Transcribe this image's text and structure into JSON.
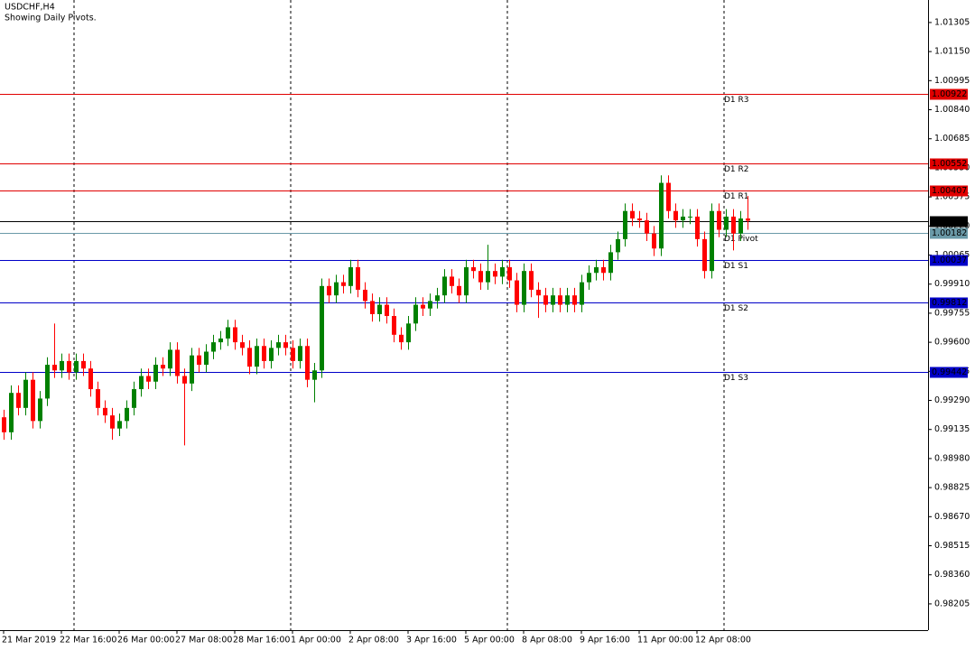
{
  "chart_data": {
    "type": "candlestick",
    "title": "USDCHF,H4",
    "subtitle": "Showing Daily Pivots.",
    "categories": [
      "21 Mar 2019",
      null,
      null,
      null,
      null,
      null,
      null,
      null,
      "22 Mar 16:00",
      null,
      null,
      null,
      null,
      null,
      null,
      null,
      "26 Mar 00:00",
      null,
      null,
      null,
      null,
      null,
      null,
      null,
      "27 Mar 08:00",
      null,
      null,
      null,
      null,
      null,
      null,
      null,
      "28 Mar 16:00",
      null,
      null,
      null,
      null,
      null,
      null,
      null,
      "1 Apr 00:00",
      null,
      null,
      null,
      null,
      null,
      null,
      null,
      "2 Apr 08:00",
      null,
      null,
      null,
      null,
      null,
      null,
      null,
      "3 Apr 16:00",
      null,
      null,
      null,
      null,
      null,
      null,
      null,
      "5 Apr 00:00",
      null,
      null,
      null,
      null,
      null,
      null,
      null,
      "8 Apr 08:00",
      null,
      null,
      null,
      null,
      null,
      null,
      null,
      "9 Apr 16:00",
      null,
      null,
      null,
      null,
      null,
      null,
      null,
      "11 Apr 00:00",
      null,
      null,
      null,
      null,
      null,
      null,
      null,
      "12 Apr 08:00",
      null,
      null,
      null,
      null,
      null,
      null,
      null
    ],
    "open": [
      0.992,
      0.9912,
      0.9933,
      0.9925,
      0.994,
      0.9918,
      0.993,
      0.9948,
      0.9945,
      0.995,
      0.9944,
      0.995,
      0.9946,
      0.9935,
      0.9925,
      0.9921,
      0.9914,
      0.9918,
      0.9925,
      0.9935,
      0.9942,
      0.9939,
      0.9948,
      0.9946,
      0.9956,
      0.9942,
      0.9938,
      0.9953,
      0.9948,
      0.9955,
      0.996,
      0.9962,
      0.9968,
      0.996,
      0.9957,
      0.9947,
      0.9958,
      0.995,
      0.9957,
      0.996,
      0.9957,
      0.995,
      0.9958,
      0.994,
      0.9945,
      0.999,
      0.9985,
      0.9992,
      0.999,
      1.0,
      0.9988,
      0.9982,
      0.9975,
      0.998,
      0.9974,
      0.9964,
      0.996,
      0.997,
      0.998,
      0.9978,
      0.9982,
      0.9985,
      0.9995,
      0.999,
      0.9985,
      1.0,
      0.9998,
      0.9992,
      0.9998,
      0.9995,
      1.0,
      0.9993,
      0.998,
      0.9998,
      0.9988,
      0.9985,
      0.998,
      0.9985,
      0.998,
      0.9985,
      0.998,
      0.9992,
      0.9997,
      1.0,
      0.9997,
      1.0008,
      1.0015,
      1.003,
      1.0026,
      1.0025,
      1.0018,
      1.001,
      1.0045,
      1.003,
      1.0025,
      1.0027,
      1.0027,
      1.0015,
      0.9998,
      1.003,
      1.002,
      1.0027,
      1.0018,
      1.0026
    ],
    "high": [
      0.9924,
      0.9937,
      0.9937,
      0.9944,
      0.9944,
      0.9934,
      0.9952,
      0.997,
      0.9954,
      0.9954,
      0.9954,
      0.9954,
      0.995,
      0.9939,
      0.9929,
      0.9925,
      0.9922,
      0.9929,
      0.9939,
      0.9946,
      0.9946,
      0.9952,
      0.9952,
      0.996,
      0.996,
      0.9946,
      0.9957,
      0.9957,
      0.9959,
      0.9964,
      0.9966,
      0.9972,
      0.9972,
      0.9964,
      0.9961,
      0.9962,
      0.9962,
      0.9961,
      0.9964,
      0.9964,
      0.9961,
      0.9962,
      0.9962,
      0.9949,
      0.9994,
      0.9994,
      0.9996,
      0.9996,
      1.0004,
      1.0004,
      0.9992,
      0.9986,
      0.9984,
      0.9984,
      0.9978,
      0.9968,
      0.9974,
      0.9984,
      0.9984,
      0.9986,
      0.9989,
      0.9999,
      0.9999,
      0.9994,
      1.0004,
      1.0004,
      1.0002,
      1.0012,
      1.0002,
      1.0004,
      1.0004,
      0.9997,
      1.0002,
      1.0002,
      0.9992,
      0.9989,
      0.9989,
      0.9989,
      0.9989,
      0.9989,
      0.9996,
      1.0001,
      1.0004,
      1.0004,
      1.0012,
      1.0019,
      1.0034,
      1.0034,
      1.003,
      1.0029,
      1.0022,
      1.0049,
      1.0049,
      1.0034,
      1.0031,
      1.0031,
      1.0031,
      1.0019,
      1.0034,
      1.0034,
      1.0031,
      1.0031,
      1.003,
      1.0038
    ],
    "low": [
      0.9908,
      0.9908,
      0.9921,
      0.9921,
      0.9914,
      0.9914,
      0.9926,
      0.9941,
      0.9941,
      0.994,
      0.994,
      0.9942,
      0.9931,
      0.9921,
      0.9917,
      0.9908,
      0.991,
      0.9914,
      0.9921,
      0.9931,
      0.9935,
      0.9935,
      0.9942,
      0.9942,
      0.9938,
      0.9905,
      0.9934,
      0.9944,
      0.9944,
      0.9951,
      0.9956,
      0.9958,
      0.9956,
      0.9953,
      0.9943,
      0.9943,
      0.9946,
      0.9946,
      0.9953,
      0.9953,
      0.9946,
      0.9946,
      0.9936,
      0.9928,
      0.9941,
      0.9981,
      0.9981,
      0.9986,
      0.9986,
      0.9984,
      0.9978,
      0.9971,
      0.9971,
      0.997,
      0.996,
      0.9956,
      0.9956,
      0.9966,
      0.9974,
      0.9974,
      0.9978,
      0.9981,
      0.9986,
      0.9981,
      0.9981,
      0.9994,
      0.9988,
      0.9988,
      0.9991,
      0.9991,
      0.9989,
      0.9976,
      0.9976,
      0.9984,
      0.9973,
      0.9976,
      0.9976,
      0.9976,
      0.9976,
      0.9976,
      0.9976,
      0.9988,
      0.9993,
      0.9993,
      0.9993,
      1.0004,
      1.0011,
      1.0022,
      1.0021,
      1.0014,
      1.0006,
      1.0006,
      1.0026,
      1.0021,
      1.0021,
      1.0023,
      1.0011,
      0.9994,
      0.9994,
      1.0016,
      1.0016,
      1.0009,
      1.0014,
      1.002
    ],
    "close": [
      0.9912,
      0.9933,
      0.9925,
      0.994,
      0.9918,
      0.993,
      0.9948,
      0.9945,
      0.995,
      0.9944,
      0.995,
      0.9946,
      0.9935,
      0.9925,
      0.9921,
      0.9914,
      0.9918,
      0.9925,
      0.9935,
      0.9942,
      0.9939,
      0.9948,
      0.9946,
      0.9956,
      0.9942,
      0.9938,
      0.9953,
      0.9948,
      0.9955,
      0.996,
      0.9962,
      0.9968,
      0.996,
      0.9957,
      0.9947,
      0.9958,
      0.995,
      0.9957,
      0.996,
      0.9957,
      0.995,
      0.9958,
      0.994,
      0.9945,
      0.999,
      0.9985,
      0.9992,
      0.999,
      1.0,
      0.9988,
      0.9982,
      0.9975,
      0.998,
      0.9974,
      0.9964,
      0.996,
      0.997,
      0.998,
      0.9978,
      0.9982,
      0.9985,
      0.9995,
      0.999,
      0.9985,
      1.0,
      0.9998,
      0.9992,
      0.9998,
      0.9995,
      1.0,
      0.9993,
      0.998,
      0.9998,
      0.9988,
      0.9985,
      0.998,
      0.9985,
      0.998,
      0.9985,
      0.998,
      0.9992,
      0.9997,
      1.0,
      0.9997,
      1.0008,
      1.0015,
      1.003,
      1.0026,
      1.0025,
      1.0018,
      1.001,
      1.0045,
      1.003,
      1.0025,
      1.0027,
      1.0027,
      1.0015,
      0.9998,
      1.003,
      1.002,
      1.0027,
      1.0018,
      1.0026,
      1.00248
    ],
    "up_color": "#008000",
    "down_color": "#ff0000",
    "ylim": [
      0.98065,
      1.01425
    ],
    "yticks": [
      1.01305,
      {
        "value": 1.0115,
        "label": "1.01150"
      },
      1.00995,
      {
        "value": 1.0084,
        "label": "1.00840"
      },
      1.00685,
      {
        "value": 1.0053,
        "label": "1.00530"
      },
      1.00375,
      {
        "value": 1.0022,
        "label": "1.00220"
      },
      1.00065,
      {
        "value": 0.9991,
        "label": "0.99910"
      },
      0.99755,
      {
        "value": 0.996,
        "label": "0.99600"
      },
      0.99445,
      {
        "value": 0.9929,
        "label": "0.99290"
      },
      0.99135,
      {
        "value": 0.9898,
        "label": "0.98980"
      },
      0.98825,
      {
        "value": 0.9867,
        "label": "0.98670"
      },
      0.98515,
      {
        "value": 0.9836,
        "label": "0.98360"
      },
      0.98205
    ],
    "levels": [
      {
        "name": "D1 R3",
        "value": 1.00922,
        "color": "#e00000"
      },
      {
        "name": "D1 R2",
        "value": 1.00552,
        "color": "#e00000"
      },
      {
        "name": "D1 R1",
        "value": 1.00407,
        "color": "#e00000"
      },
      {
        "name": "D1 Pivot",
        "value": 1.00182,
        "color": "#6a9aa8"
      },
      {
        "name": "D1 S1",
        "value": 1.00037,
        "color": "#0000c8"
      },
      {
        "name": "D1 S2",
        "value": 0.99812,
        "color": "#0000c8"
      },
      {
        "name": "D1 S3",
        "value": 0.99442,
        "color": "#0000c8"
      }
    ],
    "current_price": 1.00248
  }
}
